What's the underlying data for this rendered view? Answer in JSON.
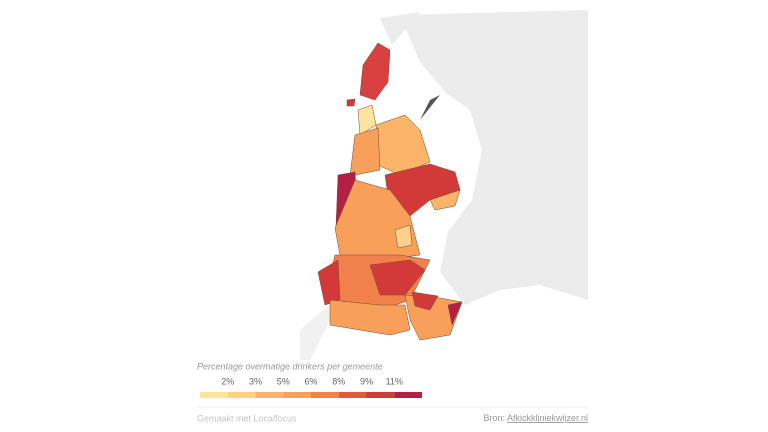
{
  "legend": {
    "title": "Percentage overmatige drinkers per gemeente",
    "labels": [
      "2%",
      "3%",
      "5%",
      "6%",
      "8%",
      "9%",
      "11%"
    ],
    "colors": [
      "#fde3a0",
      "#fdd08a",
      "#fbb468",
      "#f8a05a",
      "#f0814c",
      "#e6573f",
      "#d23a3a",
      "#b41f45"
    ]
  },
  "footer": {
    "credit": "Gemaakt met Localfocus",
    "source_prefix": "Bron:",
    "source_link": "Afkickkliniekwijzer.nl"
  }
}
